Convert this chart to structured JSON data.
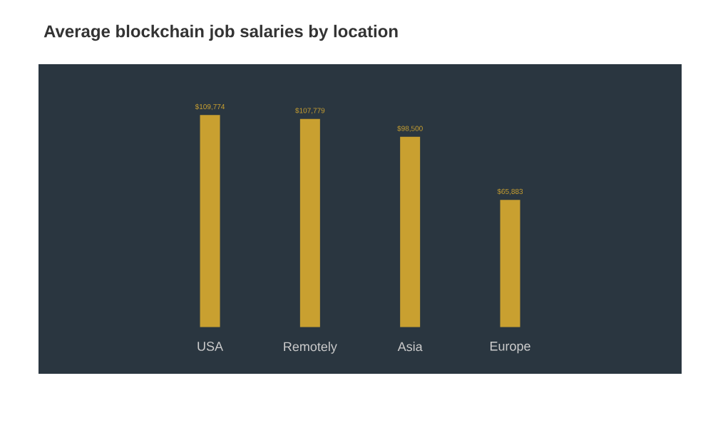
{
  "chart_data": {
    "type": "bar",
    "title": "Average blockchain job salaries by location",
    "categories": [
      "USA",
      "Remotely",
      "Asia",
      "Europe"
    ],
    "values": [
      109774,
      107779,
      98500,
      65883
    ],
    "value_labels": [
      "$109,774",
      "$107,779",
      "$98,500",
      "$65,883"
    ],
    "color": "#c9a030"
  }
}
